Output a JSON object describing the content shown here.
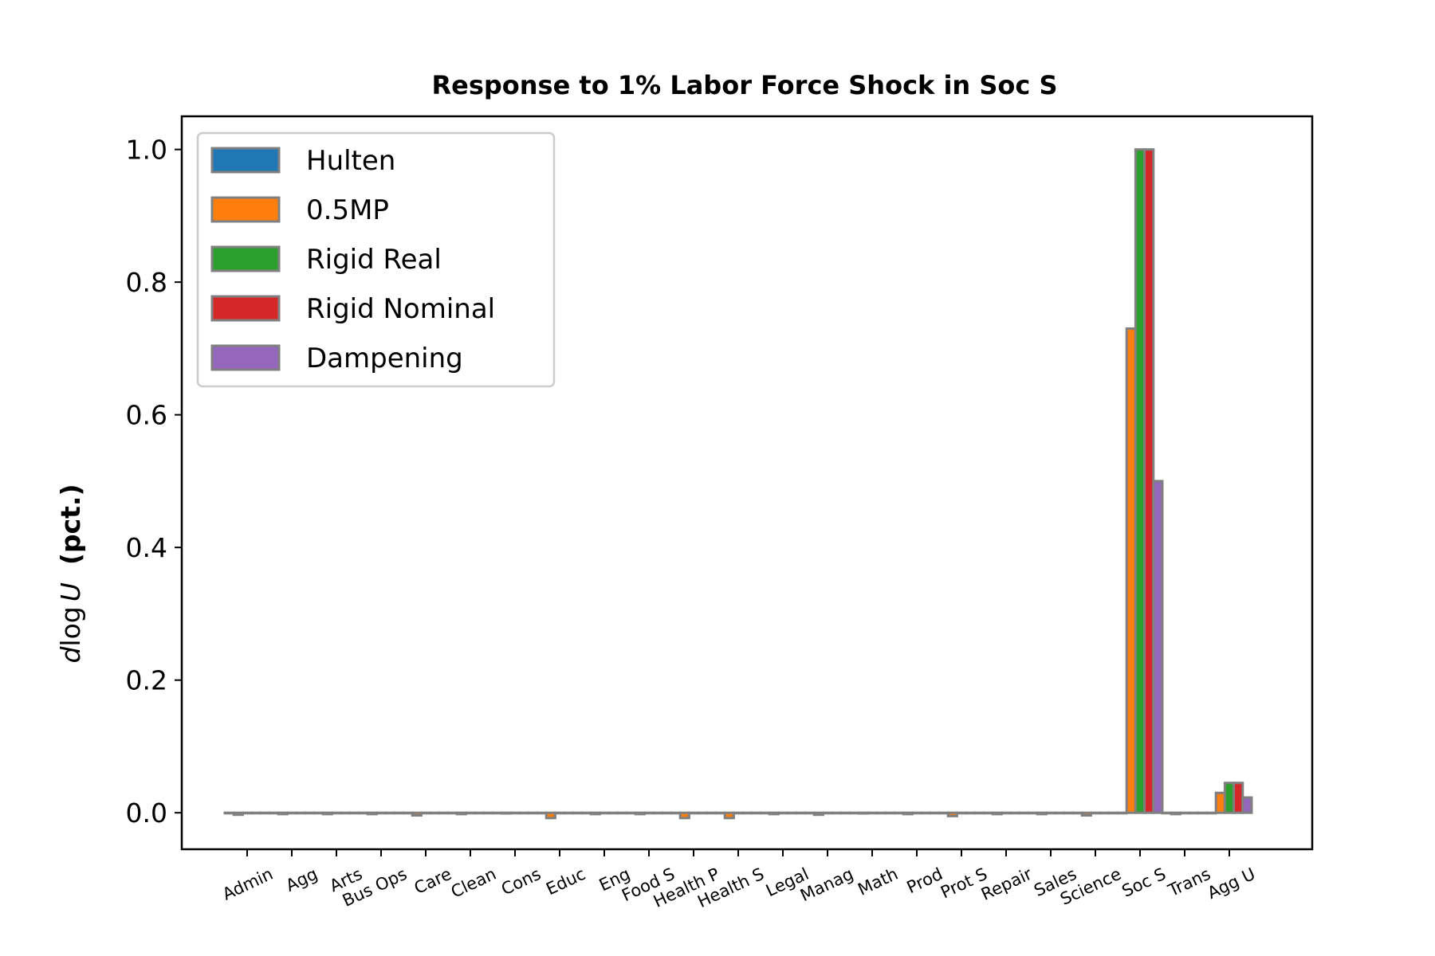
{
  "chart_data": {
    "type": "bar",
    "title": "Response to 1% Labor Force Shock in Soc S",
    "ylabel": {
      "prefix_italic": "d",
      "middle": "log",
      "var_italic": "U",
      "unit_bold": "(pct.)"
    },
    "xlabel": "",
    "ylim": [
      -0.055,
      1.05
    ],
    "yticks": [
      "0.0",
      "0.2",
      "0.4",
      "0.6",
      "0.8",
      "1.0"
    ],
    "ytick_values": [
      0.0,
      0.2,
      0.4,
      0.6,
      0.8,
      1.0
    ],
    "grid": false,
    "legend_position": "top-left",
    "categories": [
      "Admin",
      "Agg",
      "Arts",
      "Bus Ops",
      "Care",
      "Clean",
      "Cons",
      "Educ",
      "Eng",
      "Food S",
      "Health P",
      "Health S",
      "Legal",
      "Manag",
      "Math",
      "Prod",
      "Prot S",
      "Repair",
      "Sales",
      "Science",
      "Soc S",
      "Trans",
      "Agg U"
    ],
    "series": [
      {
        "name": "Hulten",
        "color": "#1f77b4",
        "values": [
          0,
          0,
          0,
          0,
          0,
          0,
          0,
          0,
          0,
          0,
          0,
          0,
          0,
          0,
          0,
          0,
          0,
          0,
          0,
          0,
          0,
          0,
          0
        ]
      },
      {
        "name": "0.5MP",
        "color": "#ff7f0e",
        "values": [
          -0.003,
          -0.002,
          -0.002,
          -0.002,
          -0.004,
          -0.002,
          -0.001,
          -0.008,
          -0.002,
          -0.002,
          -0.008,
          -0.008,
          -0.002,
          -0.003,
          -0.001,
          -0.002,
          -0.005,
          -0.002,
          -0.002,
          -0.004,
          0.73,
          -0.002,
          0.03
        ]
      },
      {
        "name": "Rigid Real",
        "color": "#2ca02c",
        "values": [
          0,
          0,
          0,
          0,
          0,
          0,
          0,
          0,
          0,
          0,
          0,
          0,
          0,
          0,
          0,
          0,
          0,
          0,
          0,
          0,
          1.0,
          0,
          0.045
        ]
      },
      {
        "name": "Rigid Nominal",
        "color": "#d62728",
        "values": [
          0,
          0,
          0,
          0,
          0,
          0,
          0,
          0,
          0,
          0,
          0,
          0,
          0,
          0,
          0,
          0,
          0,
          0,
          0,
          0,
          1.0,
          0,
          0.045
        ]
      },
      {
        "name": "Dampening",
        "color": "#9467bd",
        "values": [
          0,
          0,
          0,
          0,
          0,
          0,
          0,
          0,
          0,
          0,
          0,
          0,
          0,
          0,
          0,
          0,
          0,
          0,
          0,
          0,
          0.5,
          0,
          0.023
        ]
      }
    ],
    "bar_edge_color": "#808080"
  }
}
